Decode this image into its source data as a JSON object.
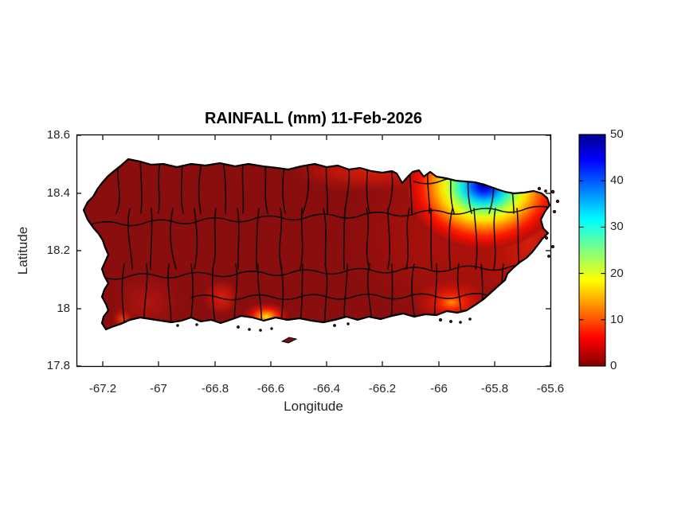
{
  "title": "RAINFALL (mm) 11-Feb-2026",
  "axes": {
    "xlabel": "Longitude",
    "ylabel": "Latitude",
    "x_tick_labels": [
      "-67.2",
      "-67",
      "-66.8",
      "-66.6",
      "-66.4",
      "-66.2",
      "-66",
      "-65.8",
      "-65.6"
    ],
    "y_tick_labels": [
      "18.6",
      "18.4",
      "18.2",
      "18",
      "17.8"
    ]
  },
  "colorbar": {
    "tick_labels": [
      "0",
      "10",
      "20",
      "30",
      "40",
      "50"
    ],
    "min": 0,
    "max": 50,
    "colormap": "jet reversed (0 = dark red, 50 = dark blue)",
    "gradient_top_to_bottom": [
      "#00008F",
      "#0000FF",
      "#00FFFF",
      "#FFFF00",
      "#FF0000",
      "#800000"
    ]
  },
  "colors": {
    "background": "#FFFFFF",
    "land_base": "#8B0E0E",
    "boundary_lines": "#0A0A0A",
    "axis_line": "#000000",
    "tick_text": "#262626"
  },
  "chart_data": {
    "type": "heatmap",
    "title": "RAINFALL (mm) 11-Feb-2026",
    "xlabel": "Longitude",
    "ylabel": "Latitude",
    "x_ticks": [
      -67.2,
      -67,
      -66.8,
      -66.6,
      -66.4,
      -66.2,
      -66,
      -65.8,
      -65.6
    ],
    "y_ticks": [
      18.6,
      18.4,
      18.2,
      18,
      17.8
    ],
    "xlim": [
      -67.29,
      -65.6
    ],
    "ylim": [
      17.8,
      18.6
    ],
    "grid": false,
    "legend_position": "right colorbar",
    "colorbar_range": [
      0,
      50
    ],
    "colorbar_ticks": [
      0,
      10,
      20,
      30,
      40,
      50
    ],
    "region": "Puerto Rico with municipal boundaries outlined in black",
    "field": "rainfall_mm",
    "background_value_mm": 0,
    "maxima": [
      {
        "name": "northeast maximum (Luquillo / El Yunque area)",
        "lon": -65.84,
        "lat": 18.42,
        "value_mm": 50
      },
      {
        "name": "north-coast reddish band west of maximum",
        "lon": -66.2,
        "lat": 18.46,
        "value_mm": 8
      },
      {
        "name": "east-tip lobe (Fajardo)",
        "lon": -65.66,
        "lat": 18.28,
        "value_mm": 10
      },
      {
        "name": "southeast inland spot",
        "lon": -65.95,
        "lat": 18.02,
        "value_mm": 15
      },
      {
        "name": "south-coast spot near Ponce",
        "lon": -66.62,
        "lat": 17.97,
        "value_mm": 22
      },
      {
        "name": "southwest coastal patch",
        "lon": -67.05,
        "lat": 17.99,
        "value_mm": 5
      }
    ]
  }
}
